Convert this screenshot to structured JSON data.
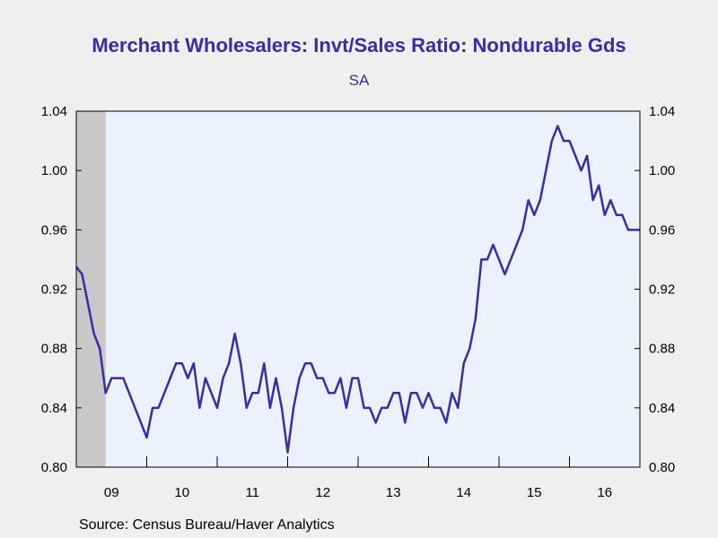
{
  "chart_data": {
    "type": "line",
    "title": "Merchant Wholesalers: Invt/Sales Ratio: Nondurable Gds",
    "subtitle": "SA",
    "source": "Source:  Census Bureau/Haver Analytics",
    "ylim": [
      0.8,
      1.04
    ],
    "yticks": [
      "0.80",
      "0.84",
      "0.88",
      "0.92",
      "0.96",
      "1.00",
      "1.04"
    ],
    "xtick_labels": [
      "09",
      "10",
      "11",
      "12",
      "13",
      "14",
      "15",
      "16"
    ],
    "start": "2009-01",
    "grid": false,
    "line_color": "#3d2ba6",
    "plot_bg": "#eaf3fd",
    "recession_shade_color": "#c8c8c8",
    "recession_end": "2009-06",
    "series": [
      {
        "values": [
          0.935,
          0.93,
          0.91,
          0.89,
          0.88,
          0.85,
          0.86,
          0.86,
          0.86,
          0.85,
          0.84,
          0.83,
          0.82,
          0.84,
          0.84,
          0.85,
          0.86,
          0.87,
          0.87,
          0.86,
          0.87,
          0.84,
          0.86,
          0.85,
          0.84,
          0.86,
          0.87,
          0.89,
          0.87,
          0.84,
          0.85,
          0.85,
          0.87,
          0.84,
          0.86,
          0.84,
          0.81,
          0.84,
          0.86,
          0.87,
          0.87,
          0.86,
          0.86,
          0.85,
          0.85,
          0.86,
          0.84,
          0.86,
          0.86,
          0.84,
          0.84,
          0.83,
          0.84,
          0.84,
          0.85,
          0.85,
          0.83,
          0.85,
          0.85,
          0.84,
          0.85,
          0.84,
          0.84,
          0.83,
          0.85,
          0.84,
          0.87,
          0.88,
          0.9,
          0.94,
          0.94,
          0.95,
          0.94,
          0.93,
          0.94,
          0.95,
          0.96,
          0.98,
          0.97,
          0.98,
          1.0,
          1.02,
          1.03,
          1.02,
          1.02,
          1.01,
          1.0,
          1.01,
          0.98,
          0.99,
          0.97,
          0.98,
          0.97,
          0.97,
          0.96,
          0.96,
          0.96
        ]
      }
    ]
  }
}
